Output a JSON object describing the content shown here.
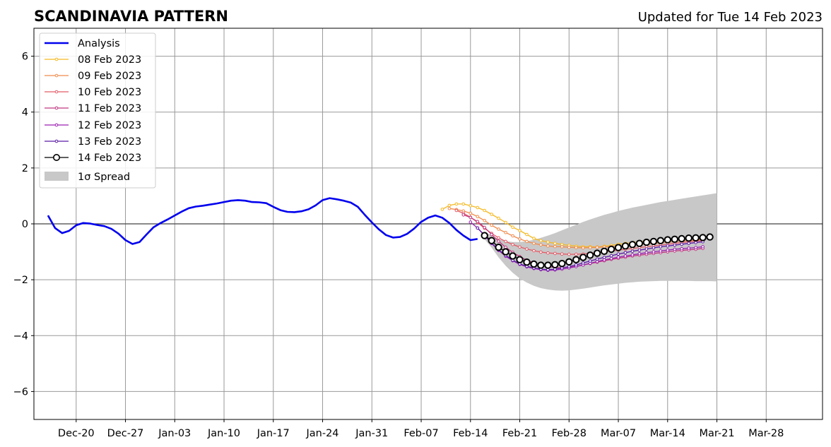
{
  "chart_data": {
    "type": "line",
    "title": "SCANDINAVIA PATTERN",
    "subtitle": "Updated for Tue 14 Feb 2023",
    "xlabel": "",
    "ylabel": "",
    "ylim": [
      -7,
      7
    ],
    "yticks": [
      -6,
      -4,
      -2,
      0,
      2,
      4,
      6
    ],
    "ytick_labels": [
      "−6",
      "−4",
      "−2",
      "0",
      "2",
      "4",
      "6"
    ],
    "xlim": [
      "2022-12-14",
      "2023-04-05"
    ],
    "xticks": [
      "2022-12-20",
      "2022-12-27",
      "2023-01-03",
      "2023-01-10",
      "2023-01-17",
      "2023-01-24",
      "2023-01-31",
      "2023-02-07",
      "2023-02-14",
      "2023-02-21",
      "2023-02-28",
      "2023-03-07",
      "2023-03-14",
      "2023-03-21",
      "2023-03-28"
    ],
    "xtick_labels": [
      "Dec-20",
      "Dec-27",
      "Jan-03",
      "Jan-10",
      "Jan-17",
      "Jan-24",
      "Jan-31",
      "Feb-07",
      "Feb-14",
      "Feb-21",
      "Feb-28",
      "Mar-07",
      "Mar-14",
      "Mar-21",
      "Mar-28"
    ],
    "grid": true,
    "legend_position": "top-left",
    "analysis": {
      "name": "Analysis",
      "color": "#0000ee",
      "start": "2022-12-16",
      "values": [
        0.3,
        -0.15,
        -0.33,
        -0.25,
        -0.05,
        0.03,
        0.01,
        -0.04,
        -0.08,
        -0.18,
        -0.35,
        -0.58,
        -0.72,
        -0.65,
        -0.38,
        -0.12,
        0.03,
        0.16,
        0.3,
        0.44,
        0.56,
        0.62,
        0.65,
        0.69,
        0.73,
        0.78,
        0.83,
        0.85,
        0.83,
        0.78,
        0.77,
        0.74,
        0.61,
        0.49,
        0.43,
        0.42,
        0.45,
        0.52,
        0.66,
        0.85,
        0.92,
        0.88,
        0.83,
        0.76,
        0.61,
        0.32,
        0.05,
        -0.2,
        -0.4,
        -0.49,
        -0.47,
        -0.36,
        -0.17,
        0.07,
        0.22,
        0.3,
        0.22,
        0.03,
        -0.22,
        -0.42,
        -0.58,
        -0.54
      ]
    },
    "forecasts": [
      {
        "name": "08 Feb 2023",
        "color": "#f5b921",
        "start": "2023-02-10",
        "values": [
          0.52,
          0.66,
          0.71,
          0.71,
          0.65,
          0.58,
          0.48,
          0.34,
          0.2,
          0.05,
          -0.12,
          -0.24,
          -0.38,
          -0.52,
          -0.6,
          -0.65,
          -0.7,
          -0.74,
          -0.77,
          -0.8,
          -0.82,
          -0.82,
          -0.83,
          -0.8,
          -0.77,
          -0.73,
          -0.7,
          -0.67,
          -0.64,
          -0.62,
          -0.6,
          -0.58,
          -0.56,
          -0.54,
          -0.52,
          -0.5,
          -0.48,
          -0.46
        ]
      },
      {
        "name": "09 Feb 2023",
        "color": "#f08a4b",
        "start": "2023-02-11",
        "values": [
          0.55,
          0.51,
          0.46,
          0.38,
          0.26,
          0.12,
          -0.05,
          -0.19,
          -0.31,
          -0.43,
          -0.54,
          -0.63,
          -0.7,
          -0.75,
          -0.79,
          -0.81,
          -0.82,
          -0.84,
          -0.85,
          -0.86,
          -0.85,
          -0.84,
          -0.83,
          -0.82,
          -0.8,
          -0.78,
          -0.76,
          -0.74,
          -0.72,
          -0.7,
          -0.68,
          -0.66,
          -0.64,
          -0.62,
          -0.6,
          -0.58,
          -0.56
        ]
      },
      {
        "name": "10 Feb 2023",
        "color": "#e35a66",
        "start": "2023-02-12",
        "values": [
          0.48,
          0.38,
          0.24,
          0.05,
          -0.16,
          -0.34,
          -0.5,
          -0.63,
          -0.74,
          -0.83,
          -0.9,
          -0.96,
          -1.01,
          -1.04,
          -1.06,
          -1.08,
          -1.09,
          -1.09,
          -1.08,
          -1.06,
          -1.03,
          -1.0,
          -0.97,
          -0.94,
          -0.91,
          -0.88,
          -0.85,
          -0.82,
          -0.79,
          -0.76,
          -0.73,
          -0.7,
          -0.67,
          -0.64,
          -0.62,
          -0.6
        ]
      },
      {
        "name": "11 Feb 2023",
        "color": "#c0367f",
        "start": "2023-02-13",
        "values": [
          0.32,
          0.23,
          0.08,
          -0.13,
          -0.38,
          -0.62,
          -0.84,
          -1.02,
          -1.17,
          -1.3,
          -1.4,
          -1.48,
          -1.53,
          -1.56,
          -1.57,
          -1.55,
          -1.52,
          -1.47,
          -1.42,
          -1.37,
          -1.32,
          -1.27,
          -1.23,
          -1.19,
          -1.15,
          -1.12,
          -1.09,
          -1.06,
          -1.03,
          -1.0,
          -0.97,
          -0.95,
          -0.93,
          -0.91,
          -0.88
        ]
      },
      {
        "name": "12 Feb 2023",
        "color": "#9b1fb0",
        "start": "2023-02-14",
        "values": [
          0.06,
          -0.15,
          -0.42,
          -0.7,
          -0.95,
          -1.16,
          -1.32,
          -1.45,
          -1.54,
          -1.6,
          -1.64,
          -1.66,
          -1.65,
          -1.62,
          -1.58,
          -1.53,
          -1.47,
          -1.41,
          -1.35,
          -1.29,
          -1.24,
          -1.19,
          -1.15,
          -1.11,
          -1.07,
          -1.03,
          -1.0,
          -0.97,
          -0.94,
          -0.91,
          -0.89,
          -0.87,
          -0.85,
          -0.82
        ]
      },
      {
        "name": "13 Feb 2023",
        "color": "#5a1aa6",
        "start": "2023-02-15",
        "values": [
          -0.15,
          -0.4,
          -0.68,
          -0.93,
          -1.13,
          -1.3,
          -1.43,
          -1.52,
          -1.58,
          -1.62,
          -1.64,
          -1.62,
          -1.58,
          -1.53,
          -1.47,
          -1.4,
          -1.33,
          -1.26,
          -1.2,
          -1.14,
          -1.08,
          -1.03,
          -0.98,
          -0.94,
          -0.9,
          -0.86,
          -0.82,
          -0.79,
          -0.76,
          -0.73,
          -0.7,
          -0.67,
          -0.64
        ]
      },
      {
        "name": "14 Feb 2023",
        "color": "#000000",
        "start": "2023-02-16",
        "values": [
          -0.42,
          -0.6,
          -0.84,
          -1.0,
          -1.15,
          -1.28,
          -1.37,
          -1.44,
          -1.48,
          -1.48,
          -1.46,
          -1.42,
          -1.36,
          -1.28,
          -1.2,
          -1.12,
          -1.05,
          -0.98,
          -0.91,
          -0.85,
          -0.79,
          -0.74,
          -0.7,
          -0.66,
          -0.63,
          -0.6,
          -0.57,
          -0.55,
          -0.53,
          -0.51,
          -0.5,
          -0.49,
          -0.47
        ]
      }
    ],
    "spread": {
      "name": "1σ Spread",
      "color": "#c8c8c8",
      "start": "2023-02-16",
      "upper": [
        -0.28,
        -0.42,
        -0.55,
        -0.62,
        -0.65,
        -0.65,
        -0.62,
        -0.57,
        -0.5,
        -0.42,
        -0.33,
        -0.23,
        -0.13,
        -0.03,
        0.07,
        0.16,
        0.24,
        0.32,
        0.39,
        0.46,
        0.52,
        0.58,
        0.63,
        0.68,
        0.73,
        0.78,
        0.82,
        0.86,
        0.9,
        0.94,
        0.98,
        1.02,
        1.06,
        1.1
      ],
      "lower": [
        -0.55,
        -0.85,
        -1.2,
        -1.5,
        -1.75,
        -1.95,
        -2.1,
        -2.22,
        -2.3,
        -2.35,
        -2.38,
        -2.39,
        -2.38,
        -2.35,
        -2.32,
        -2.28,
        -2.24,
        -2.2,
        -2.17,
        -2.14,
        -2.11,
        -2.09,
        -2.07,
        -2.06,
        -2.05,
        -2.04,
        -2.04,
        -2.04,
        -2.04,
        -2.04,
        -2.05,
        -2.05,
        -2.05,
        -2.06
      ]
    }
  }
}
